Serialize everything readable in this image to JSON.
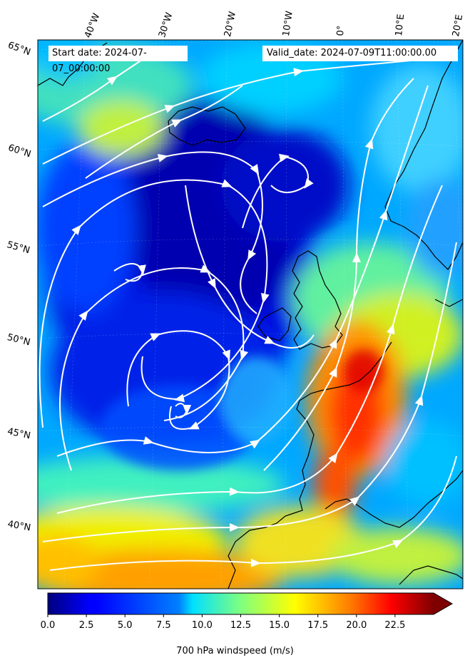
{
  "info": {
    "start_label": "Start date: 2024-07-07_00:00:00",
    "valid_label": "Valid_date: 2024-07-09T11:00:00.00"
  },
  "lon_labels": [
    "40°W",
    "30°W",
    "20°W",
    "10°W",
    "0°",
    "10°E",
    "20°E"
  ],
  "lat_labels": [
    "65°N",
    "60°N",
    "55°N",
    "50°N",
    "45°N",
    "40°N"
  ],
  "colorbar": {
    "title": "700 hPa windspeed (m/s)",
    "ticks": [
      "0.0",
      "2.5",
      "5.0",
      "7.5",
      "10.0",
      "12.5",
      "15.0",
      "17.5",
      "20.0",
      "22.5"
    ],
    "range": [
      0,
      25
    ],
    "extend": "max",
    "colormap": "jet"
  },
  "colors": {
    "streamline": "#ffffff",
    "coastline": "#000000"
  }
}
